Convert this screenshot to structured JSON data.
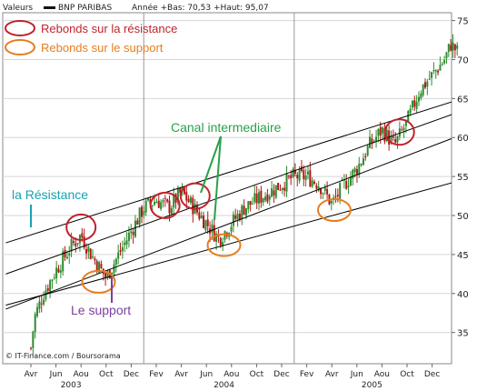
{
  "header": {
    "series_label": "Valeurs",
    "stock_name": "BNP PARIBAS",
    "summary": "Année +Bas: 70,53 +Haut: 95,07"
  },
  "legend": {
    "resistance_rebounds": "Rebonds sur la résistance",
    "support_rebounds": "Rebonds sur le support"
  },
  "annotations": {
    "resistance": "la Résistance",
    "support": "Le support",
    "channel": "Canal intermediaire"
  },
  "credit": "© IT-Finance.com / Boursorama",
  "colors": {
    "resistance": "#c0232c",
    "support": "#e67e1e",
    "resistance_text": "#15a3b3",
    "support_text": "#7b3fa0",
    "channel_text": "#2aa04a",
    "candle_up": "#2e8b2e",
    "candle_down": "#b01818",
    "grid": "#d6d6d6",
    "trendline": "#000000"
  },
  "chart_data": {
    "type": "candlestick",
    "title": "BNP PARIBAS",
    "ylim": [
      31,
      76
    ],
    "yticks": [
      35,
      40,
      45,
      50,
      55,
      60,
      65,
      70,
      75
    ],
    "months": [
      "Avr",
      "Jun",
      "Aou",
      "Oct",
      "Dec",
      "Fev",
      "Avr",
      "Jun",
      "Aou",
      "Oct",
      "Dec",
      "Fev",
      "Avr",
      "Jun",
      "Aou",
      "Oct",
      "Dec"
    ],
    "years": [
      "2003",
      "2004",
      "2005"
    ],
    "year_month_index": [
      0,
      1,
      2
    ],
    "price_anchors": [
      {
        "t": 0,
        "v": 33
      },
      {
        "t": 0.15,
        "v": 37
      },
      {
        "t": 0.5,
        "v": 40
      },
      {
        "t": 1,
        "v": 43
      },
      {
        "t": 1.6,
        "v": 46
      },
      {
        "t": 2,
        "v": 47.5
      },
      {
        "t": 2.4,
        "v": 45
      },
      {
        "t": 3,
        "v": 42
      },
      {
        "t": 3.5,
        "v": 45
      },
      {
        "t": 4,
        "v": 48
      },
      {
        "t": 4.5,
        "v": 51
      },
      {
        "t": 5,
        "v": 52
      },
      {
        "t": 5.5,
        "v": 51
      },
      {
        "t": 6,
        "v": 53
      },
      {
        "t": 6.5,
        "v": 51
      },
      {
        "t": 7,
        "v": 49
      },
      {
        "t": 7.5,
        "v": 47
      },
      {
        "t": 8,
        "v": 49
      },
      {
        "t": 8.5,
        "v": 51
      },
      {
        "t": 9,
        "v": 52
      },
      {
        "t": 9.5,
        "v": 53
      },
      {
        "t": 10,
        "v": 54
      },
      {
        "t": 10.5,
        "v": 55
      },
      {
        "t": 11,
        "v": 55
      },
      {
        "t": 11.5,
        "v": 54
      },
      {
        "t": 12,
        "v": 51.5
      },
      {
        "t": 12.5,
        "v": 54
      },
      {
        "t": 13,
        "v": 56
      },
      {
        "t": 13.5,
        "v": 59
      },
      {
        "t": 14,
        "v": 61
      },
      {
        "t": 14.5,
        "v": 59
      },
      {
        "t": 15,
        "v": 62
      },
      {
        "t": 15.5,
        "v": 66
      },
      {
        "t": 16,
        "v": 68
      },
      {
        "t": 16.5,
        "v": 70
      },
      {
        "t": 16.75,
        "v": 72
      },
      {
        "t": 17,
        "v": 71
      }
    ],
    "trendlines": [
      {
        "name": "resistance_upper",
        "from": {
          "t": -1.0,
          "v": 46.5
        },
        "to": {
          "t": 17.7,
          "v": 65.5
        }
      },
      {
        "name": "resistance_lower",
        "from": {
          "t": -1.0,
          "v": 42.5
        },
        "to": {
          "t": 17.7,
          "v": 64.0
        }
      },
      {
        "name": "support_upper",
        "from": {
          "t": -1.0,
          "v": 38.0
        },
        "to": {
          "t": 17.7,
          "v": 61.0
        }
      },
      {
        "name": "support_lower",
        "from": {
          "t": -1.0,
          "v": 38.5
        },
        "to": {
          "t": 17.7,
          "v": 55.0
        }
      }
    ],
    "resistance_rebounds": [
      {
        "t": 2.0,
        "v": 48.5
      },
      {
        "t": 5.35,
        "v": 51.3
      },
      {
        "t": 6.55,
        "v": 52.5
      },
      {
        "t": 14.7,
        "v": 60.7
      }
    ],
    "support_rebounds": [
      {
        "t": 2.7,
        "v": 41.5
      },
      {
        "t": 7.7,
        "v": 46.2
      },
      {
        "t": 12.1,
        "v": 50.7
      }
    ]
  }
}
